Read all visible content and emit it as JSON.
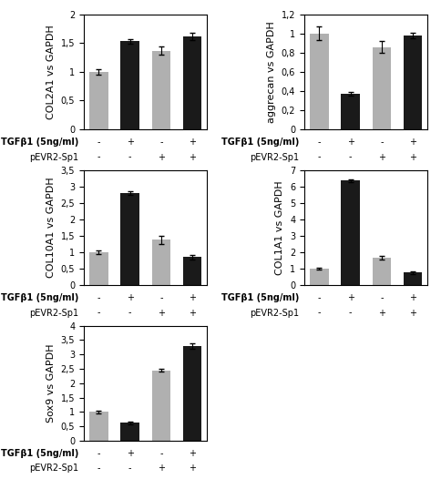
{
  "chart_data": [
    {
      "type": "bar",
      "y_label": "COL2A1 vs GAPDH",
      "values": [
        1.0,
        1.53,
        1.37,
        1.62
      ],
      "errors": [
        0.05,
        0.04,
        0.07,
        0.06
      ],
      "colors": [
        "#b0b0b0",
        "#1a1a1a",
        "#b0b0b0",
        "#1a1a1a"
      ],
      "ylim": [
        0,
        2
      ],
      "yticks": [
        0,
        {
          "value": 0.5,
          "label": "0,5"
        },
        1,
        {
          "value": 1.5,
          "label": "1,5"
        },
        2
      ],
      "tick_labels": "y",
      "annotations": [
        {
          "text": "TGFβ1 (5ng/ml)",
          "signs": [
            "-",
            "+",
            "-",
            "+"
          ]
        },
        {
          "text": "pEVR2-Sp1",
          "signs": [
            "-",
            "-",
            "+",
            "+"
          ]
        }
      ]
    },
    {
      "type": "bar",
      "y_label": "aggrecan vs GAPDH",
      "values": [
        1.0,
        0.37,
        0.86,
        0.98
      ],
      "errors": [
        0.07,
        0.02,
        0.06,
        0.03
      ],
      "colors": [
        "#b0b0b0",
        "#1a1a1a",
        "#b0b0b0",
        "#1a1a1a"
      ],
      "ylim": [
        0,
        1.2
      ],
      "yticks": [
        0,
        {
          "value": 0.2,
          "label": "0,2"
        },
        {
          "value": 0.4,
          "label": "0,4"
        },
        {
          "value": 0.6,
          "label": "0,6"
        },
        {
          "value": 0.8,
          "label": "0,8"
        },
        1,
        {
          "value": 1.2,
          "label": "1,2"
        }
      ],
      "tick_labels": "y",
      "annotations": [
        {
          "text": "TGFβ1 (5ng/ml)",
          "signs": [
            "-",
            "+",
            "-",
            "+"
          ]
        },
        {
          "text": "pEVR2-Sp1",
          "signs": [
            "-",
            "-",
            "+",
            "+"
          ]
        }
      ]
    },
    {
      "type": "bar",
      "y_label": "COL10A1 vs GAPDH",
      "values": [
        1.0,
        2.8,
        1.38,
        0.85
      ],
      "errors": [
        0.05,
        0.06,
        0.12,
        0.07
      ],
      "colors": [
        "#b0b0b0",
        "#1a1a1a",
        "#b0b0b0",
        "#1a1a1a"
      ],
      "ylim": [
        0,
        3.5
      ],
      "yticks": [
        0,
        {
          "value": 0.5,
          "label": "0,5"
        },
        1,
        {
          "value": 1.5,
          "label": "1,5"
        },
        2,
        {
          "value": 2.5,
          "label": "2,5"
        },
        3,
        {
          "value": 3.5,
          "label": "3,5"
        }
      ],
      "tick_labels": "y",
      "annotations": [
        {
          "text": "TGFβ1 (5ng/ml)",
          "signs": [
            "-",
            "+",
            "-",
            "+"
          ]
        },
        {
          "text": "pEVR2-Sp1",
          "signs": [
            "-",
            "-",
            "+",
            "+"
          ]
        }
      ]
    },
    {
      "type": "bar",
      "y_label": "COL1A1 vs GAPDH",
      "values": [
        1.0,
        6.35,
        1.65,
        0.75
      ],
      "errors": [
        0.07,
        0.1,
        0.1,
        0.07
      ],
      "colors": [
        "#b0b0b0",
        "#1a1a1a",
        "#b0b0b0",
        "#1a1a1a"
      ],
      "ylim": [
        0,
        7
      ],
      "yticks": [
        0,
        1,
        2,
        3,
        4,
        5,
        6,
        7
      ],
      "tick_labels": "y",
      "annotations": [
        {
          "text": "TGFβ1 (5ng/ml)",
          "signs": [
            "-",
            "+",
            "-",
            "+"
          ]
        },
        {
          "text": "pEVR2-Sp1",
          "signs": [
            "-",
            "-",
            "+",
            "+"
          ]
        }
      ]
    },
    {
      "type": "bar",
      "y_label": "Sox9 vs GAPDH",
      "values": [
        1.0,
        0.62,
        2.45,
        3.3
      ],
      "errors": [
        0.05,
        0.04,
        0.05,
        0.1
      ],
      "colors": [
        "#b0b0b0",
        "#1a1a1a",
        "#b0b0b0",
        "#1a1a1a"
      ],
      "ylim": [
        0,
        4
      ],
      "yticks": [
        0,
        {
          "value": 0.5,
          "label": "0,5"
        },
        1,
        {
          "value": 1.5,
          "label": "1,5"
        },
        2,
        {
          "value": 2.5,
          "label": "2,5"
        },
        3,
        {
          "value": 3.5,
          "label": "3,5"
        },
        4
      ],
      "tick_labels": "y",
      "annotations": [
        {
          "text": "TGFβ1 (5ng/ml)",
          "signs": [
            "-",
            "+",
            "-",
            "+"
          ]
        },
        {
          "text": "pEVR2-Sp1",
          "signs": [
            "-",
            "-",
            "+",
            "+"
          ]
        }
      ]
    }
  ]
}
